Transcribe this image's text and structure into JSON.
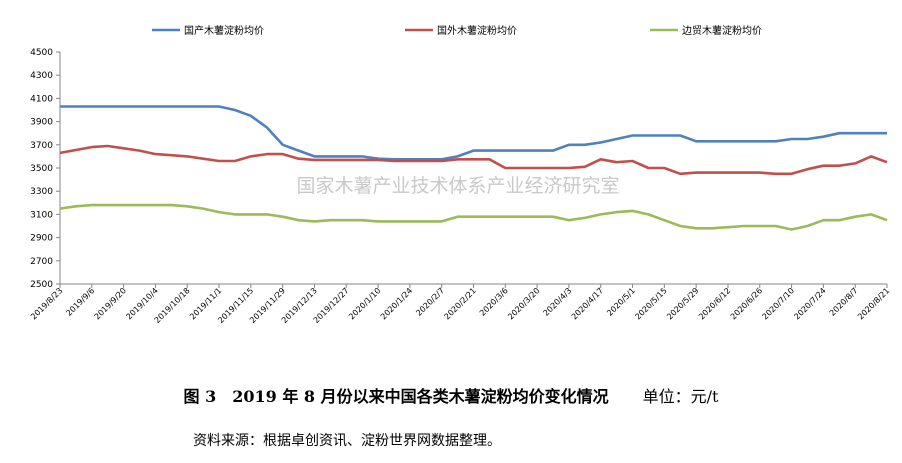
{
  "figure": {
    "title": "图 3　2019 年 8 月份以来中国各类木薯淀粉均价变化情况",
    "unit": "单位：元/t",
    "source": "资料来源：根据卓创资讯、淀粉世界网数据整理。"
  },
  "watermark": "国家木薯产业技术体系产业经济研究室",
  "chart_data": {
    "type": "line",
    "title": "",
    "xlabel": "",
    "ylabel": "",
    "ylim": [
      2500,
      4500
    ],
    "yticks": [
      2500,
      2700,
      2900,
      3100,
      3300,
      3500,
      3700,
      3900,
      4100,
      4300,
      4500
    ],
    "grid": false,
    "legend_position": "top",
    "x_tick_labels": [
      "2019/8/23",
      "2019/9/6",
      "2019/9/20",
      "2019/10/4",
      "2019/10/18",
      "2019/11/1",
      "2019/11/15",
      "2019/11/29",
      "2019/12/13",
      "2019/12/27",
      "2020/1/10",
      "2020/1/24",
      "2020/2/7",
      "2020/2/21",
      "2020/3/6",
      "2020/3/20",
      "2020/4/3",
      "2020/4/17",
      "2020/5/1",
      "2020/5/15",
      "2020/5/29",
      "2020/6/12",
      "2020/6/26",
      "2020/7/10",
      "2020/7/24",
      "2020/8/7",
      "2020/8/21"
    ],
    "x": [
      "2019/8/23",
      "2019/8/30",
      "2019/9/6",
      "2019/9/13",
      "2019/9/20",
      "2019/9/27",
      "2019/10/4",
      "2019/10/11",
      "2019/10/18",
      "2019/10/25",
      "2019/11/1",
      "2019/11/8",
      "2019/11/15",
      "2019/11/22",
      "2019/11/29",
      "2019/12/6",
      "2019/12/13",
      "2019/12/20",
      "2019/12/27",
      "2020/1/3",
      "2020/1/10",
      "2020/1/17",
      "2020/1/24",
      "2020/1/31",
      "2020/2/7",
      "2020/2/14",
      "2020/2/21",
      "2020/2/28",
      "2020/3/6",
      "2020/3/13",
      "2020/3/20",
      "2020/3/27",
      "2020/4/3",
      "2020/4/10",
      "2020/4/17",
      "2020/4/24",
      "2020/5/1",
      "2020/5/8",
      "2020/5/15",
      "2020/5/22",
      "2020/5/29",
      "2020/6/5",
      "2020/6/12",
      "2020/6/19",
      "2020/6/26",
      "2020/7/3",
      "2020/7/10",
      "2020/7/17",
      "2020/7/24",
      "2020/7/31",
      "2020/8/7",
      "2020/8/14",
      "2020/8/21"
    ],
    "series": [
      {
        "name": "国产木薯淀粉均价",
        "color": "#4f81bd",
        "values": [
          4030,
          4030,
          4030,
          4030,
          4030,
          4030,
          4030,
          4030,
          4030,
          4030,
          4030,
          4000,
          3950,
          3850,
          3700,
          3650,
          3600,
          3600,
          3600,
          3600,
          3580,
          3575,
          3575,
          3575,
          3575,
          3600,
          3650,
          3650,
          3650,
          3650,
          3650,
          3650,
          3700,
          3700,
          3720,
          3750,
          3780,
          3780,
          3780,
          3780,
          3730,
          3730,
          3730,
          3730,
          3730,
          3730,
          3750,
          3750,
          3770,
          3800,
          3800,
          3800,
          3800
        ]
      },
      {
        "name": "国外木薯淀粉均价",
        "color": "#c0504d",
        "values": [
          3630,
          3655,
          3680,
          3690,
          3670,
          3650,
          3620,
          3610,
          3600,
          3580,
          3560,
          3560,
          3600,
          3620,
          3620,
          3580,
          3570,
          3570,
          3570,
          3570,
          3570,
          3560,
          3560,
          3560,
          3560,
          3575,
          3575,
          3575,
          3500,
          3500,
          3500,
          3500,
          3500,
          3510,
          3575,
          3550,
          3560,
          3500,
          3500,
          3450,
          3460,
          3460,
          3460,
          3460,
          3460,
          3450,
          3450,
          3490,
          3520,
          3520,
          3540,
          3600,
          3550
        ]
      },
      {
        "name": "边贸木薯淀粉均价",
        "color": "#9bbb59",
        "values": [
          3150,
          3170,
          3180,
          3180,
          3180,
          3180,
          3180,
          3180,
          3170,
          3150,
          3120,
          3100,
          3100,
          3100,
          3080,
          3050,
          3040,
          3050,
          3050,
          3050,
          3040,
          3040,
          3040,
          3040,
          3040,
          3080,
          3080,
          3080,
          3080,
          3080,
          3080,
          3080,
          3050,
          3070,
          3100,
          3120,
          3130,
          3100,
          3050,
          3000,
          2980,
          2980,
          2990,
          3000,
          3000,
          3000,
          2970,
          3000,
          3050,
          3050,
          3080,
          3100,
          3050
        ]
      }
    ]
  }
}
